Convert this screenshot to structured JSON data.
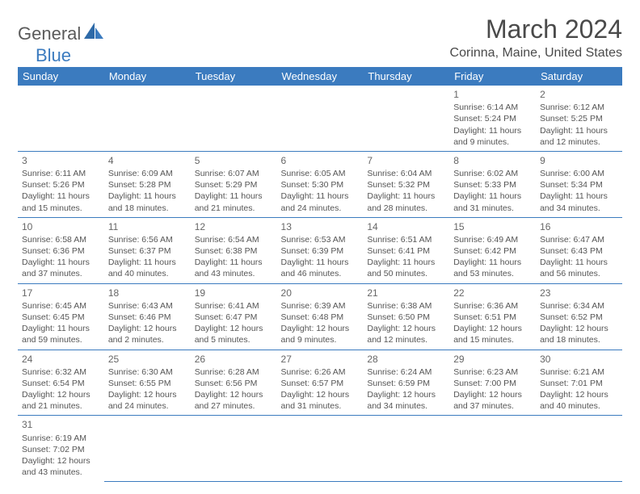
{
  "brand": {
    "name1": "General",
    "name2": "Blue"
  },
  "title": "March 2024",
  "location": "Corinna, Maine, United States",
  "colors": {
    "header_bg": "#3b7bbf",
    "header_text": "#ffffff",
    "border": "#3b7bbf",
    "text": "#555555",
    "title_text": "#4a4a4a"
  },
  "typography": {
    "title_fontsize": 32,
    "location_fontsize": 16,
    "dayheader_fontsize": 13,
    "cell_fontsize": 10.5
  },
  "day_headers": [
    "Sunday",
    "Monday",
    "Tuesday",
    "Wednesday",
    "Thursday",
    "Friday",
    "Saturday"
  ],
  "weeks": [
    [
      null,
      null,
      null,
      null,
      null,
      {
        "n": "1",
        "sr": "Sunrise: 6:14 AM",
        "ss": "Sunset: 5:24 PM",
        "d1": "Daylight: 11 hours",
        "d2": "and 9 minutes."
      },
      {
        "n": "2",
        "sr": "Sunrise: 6:12 AM",
        "ss": "Sunset: 5:25 PM",
        "d1": "Daylight: 11 hours",
        "d2": "and 12 minutes."
      }
    ],
    [
      {
        "n": "3",
        "sr": "Sunrise: 6:11 AM",
        "ss": "Sunset: 5:26 PM",
        "d1": "Daylight: 11 hours",
        "d2": "and 15 minutes."
      },
      {
        "n": "4",
        "sr": "Sunrise: 6:09 AM",
        "ss": "Sunset: 5:28 PM",
        "d1": "Daylight: 11 hours",
        "d2": "and 18 minutes."
      },
      {
        "n": "5",
        "sr": "Sunrise: 6:07 AM",
        "ss": "Sunset: 5:29 PM",
        "d1": "Daylight: 11 hours",
        "d2": "and 21 minutes."
      },
      {
        "n": "6",
        "sr": "Sunrise: 6:05 AM",
        "ss": "Sunset: 5:30 PM",
        "d1": "Daylight: 11 hours",
        "d2": "and 24 minutes."
      },
      {
        "n": "7",
        "sr": "Sunrise: 6:04 AM",
        "ss": "Sunset: 5:32 PM",
        "d1": "Daylight: 11 hours",
        "d2": "and 28 minutes."
      },
      {
        "n": "8",
        "sr": "Sunrise: 6:02 AM",
        "ss": "Sunset: 5:33 PM",
        "d1": "Daylight: 11 hours",
        "d2": "and 31 minutes."
      },
      {
        "n": "9",
        "sr": "Sunrise: 6:00 AM",
        "ss": "Sunset: 5:34 PM",
        "d1": "Daylight: 11 hours",
        "d2": "and 34 minutes."
      }
    ],
    [
      {
        "n": "10",
        "sr": "Sunrise: 6:58 AM",
        "ss": "Sunset: 6:36 PM",
        "d1": "Daylight: 11 hours",
        "d2": "and 37 minutes."
      },
      {
        "n": "11",
        "sr": "Sunrise: 6:56 AM",
        "ss": "Sunset: 6:37 PM",
        "d1": "Daylight: 11 hours",
        "d2": "and 40 minutes."
      },
      {
        "n": "12",
        "sr": "Sunrise: 6:54 AM",
        "ss": "Sunset: 6:38 PM",
        "d1": "Daylight: 11 hours",
        "d2": "and 43 minutes."
      },
      {
        "n": "13",
        "sr": "Sunrise: 6:53 AM",
        "ss": "Sunset: 6:39 PM",
        "d1": "Daylight: 11 hours",
        "d2": "and 46 minutes."
      },
      {
        "n": "14",
        "sr": "Sunrise: 6:51 AM",
        "ss": "Sunset: 6:41 PM",
        "d1": "Daylight: 11 hours",
        "d2": "and 50 minutes."
      },
      {
        "n": "15",
        "sr": "Sunrise: 6:49 AM",
        "ss": "Sunset: 6:42 PM",
        "d1": "Daylight: 11 hours",
        "d2": "and 53 minutes."
      },
      {
        "n": "16",
        "sr": "Sunrise: 6:47 AM",
        "ss": "Sunset: 6:43 PM",
        "d1": "Daylight: 11 hours",
        "d2": "and 56 minutes."
      }
    ],
    [
      {
        "n": "17",
        "sr": "Sunrise: 6:45 AM",
        "ss": "Sunset: 6:45 PM",
        "d1": "Daylight: 11 hours",
        "d2": "and 59 minutes."
      },
      {
        "n": "18",
        "sr": "Sunrise: 6:43 AM",
        "ss": "Sunset: 6:46 PM",
        "d1": "Daylight: 12 hours",
        "d2": "and 2 minutes."
      },
      {
        "n": "19",
        "sr": "Sunrise: 6:41 AM",
        "ss": "Sunset: 6:47 PM",
        "d1": "Daylight: 12 hours",
        "d2": "and 5 minutes."
      },
      {
        "n": "20",
        "sr": "Sunrise: 6:39 AM",
        "ss": "Sunset: 6:48 PM",
        "d1": "Daylight: 12 hours",
        "d2": "and 9 minutes."
      },
      {
        "n": "21",
        "sr": "Sunrise: 6:38 AM",
        "ss": "Sunset: 6:50 PM",
        "d1": "Daylight: 12 hours",
        "d2": "and 12 minutes."
      },
      {
        "n": "22",
        "sr": "Sunrise: 6:36 AM",
        "ss": "Sunset: 6:51 PM",
        "d1": "Daylight: 12 hours",
        "d2": "and 15 minutes."
      },
      {
        "n": "23",
        "sr": "Sunrise: 6:34 AM",
        "ss": "Sunset: 6:52 PM",
        "d1": "Daylight: 12 hours",
        "d2": "and 18 minutes."
      }
    ],
    [
      {
        "n": "24",
        "sr": "Sunrise: 6:32 AM",
        "ss": "Sunset: 6:54 PM",
        "d1": "Daylight: 12 hours",
        "d2": "and 21 minutes."
      },
      {
        "n": "25",
        "sr": "Sunrise: 6:30 AM",
        "ss": "Sunset: 6:55 PM",
        "d1": "Daylight: 12 hours",
        "d2": "and 24 minutes."
      },
      {
        "n": "26",
        "sr": "Sunrise: 6:28 AM",
        "ss": "Sunset: 6:56 PM",
        "d1": "Daylight: 12 hours",
        "d2": "and 27 minutes."
      },
      {
        "n": "27",
        "sr": "Sunrise: 6:26 AM",
        "ss": "Sunset: 6:57 PM",
        "d1": "Daylight: 12 hours",
        "d2": "and 31 minutes."
      },
      {
        "n": "28",
        "sr": "Sunrise: 6:24 AM",
        "ss": "Sunset: 6:59 PM",
        "d1": "Daylight: 12 hours",
        "d2": "and 34 minutes."
      },
      {
        "n": "29",
        "sr": "Sunrise: 6:23 AM",
        "ss": "Sunset: 7:00 PM",
        "d1": "Daylight: 12 hours",
        "d2": "and 37 minutes."
      },
      {
        "n": "30",
        "sr": "Sunrise: 6:21 AM",
        "ss": "Sunset: 7:01 PM",
        "d1": "Daylight: 12 hours",
        "d2": "and 40 minutes."
      }
    ],
    [
      {
        "n": "31",
        "sr": "Sunrise: 6:19 AM",
        "ss": "Sunset: 7:02 PM",
        "d1": "Daylight: 12 hours",
        "d2": "and 43 minutes."
      },
      null,
      null,
      null,
      null,
      null,
      null
    ]
  ]
}
